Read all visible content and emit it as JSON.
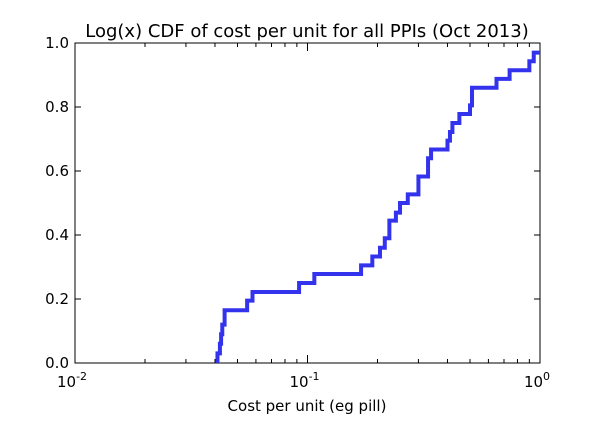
{
  "chart_data": {
    "type": "line",
    "title": "Log(x) CDF of cost per unit for all PPIs (Oct 2013)",
    "xlabel": "Cost per unit (eg pill)",
    "ylabel": "",
    "xscale": "log",
    "xlim": [
      0.01,
      1
    ],
    "ylim": [
      0,
      1
    ],
    "grid": false,
    "legend": "none",
    "line_color": "#3333ee",
    "x_ticks": [
      {
        "value": 0.01,
        "base": "10",
        "exp": "-2"
      },
      {
        "value": 0.1,
        "base": "10",
        "exp": "-1"
      },
      {
        "value": 1,
        "base": "10",
        "exp": "0"
      }
    ],
    "y_ticks": [
      "0.0",
      "0.2",
      "0.4",
      "0.6",
      "0.8",
      "1.0"
    ],
    "y_tick_values": [
      0,
      0.2,
      0.4,
      0.6,
      0.8,
      1.0
    ],
    "series": [
      {
        "x": [
          0.041,
          0.041,
          0.042,
          0.042,
          0.0425,
          0.0425,
          0.043,
          0.043,
          0.044,
          0.044,
          0.055,
          0.055,
          0.058,
          0.058,
          0.092,
          0.092,
          0.107,
          0.107,
          0.17,
          0.17,
          0.19,
          0.19,
          0.205,
          0.205,
          0.215,
          0.215,
          0.225,
          0.225,
          0.24,
          0.24,
          0.25,
          0.25,
          0.27,
          0.27,
          0.3,
          0.3,
          0.33,
          0.33,
          0.34,
          0.34,
          0.4,
          0.4,
          0.41,
          0.41,
          0.42,
          0.42,
          0.45,
          0.45,
          0.5,
          0.5,
          0.51,
          0.51,
          0.65,
          0.65,
          0.74,
          0.74,
          0.9,
          0.9,
          0.94,
          0.94,
          1.0
        ],
        "y": [
          0.0,
          0.03,
          0.03,
          0.06,
          0.06,
          0.09,
          0.09,
          0.12,
          0.12,
          0.165,
          0.165,
          0.195,
          0.195,
          0.222,
          0.222,
          0.25,
          0.25,
          0.278,
          0.278,
          0.305,
          0.305,
          0.333,
          0.333,
          0.36,
          0.36,
          0.39,
          0.39,
          0.445,
          0.445,
          0.47,
          0.47,
          0.5,
          0.5,
          0.527,
          0.527,
          0.583,
          0.583,
          0.64,
          0.64,
          0.667,
          0.667,
          0.695,
          0.695,
          0.722,
          0.722,
          0.75,
          0.75,
          0.778,
          0.778,
          0.805,
          0.805,
          0.86,
          0.86,
          0.888,
          0.888,
          0.915,
          0.915,
          0.943,
          0.943,
          0.97,
          0.97
        ]
      }
    ]
  }
}
